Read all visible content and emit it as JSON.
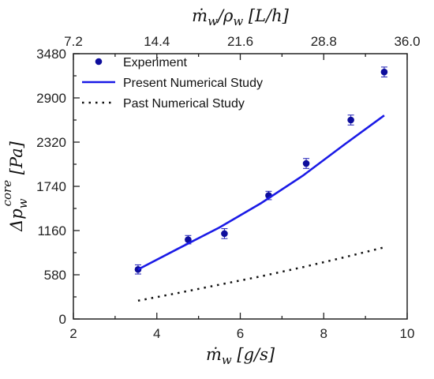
{
  "chart_data": {
    "type": "line",
    "xlabel": "ṁ_w [g/s]",
    "ylabel": "Δp_w^core [Pa]",
    "x2label": "ṁ_w/ρ_w [L/h]",
    "xlim": [
      2,
      10
    ],
    "ylim": [
      0,
      3480
    ],
    "x2lim": [
      7.2,
      36.0
    ],
    "x_ticks": [
      2,
      4,
      6,
      8,
      10
    ],
    "y_ticks": [
      0,
      580,
      1160,
      1740,
      2320,
      2900,
      3480
    ],
    "x2_ticks": [
      "7.2",
      "14.4",
      "21.6",
      "28.8",
      "36.0"
    ],
    "grid": false,
    "legend_position": "top-left",
    "series": [
      {
        "name": "Experiment",
        "kind": "scatter-errorbar",
        "color": "#1a1ab4",
        "x": [
          3.55,
          4.75,
          5.62,
          6.68,
          7.58,
          8.65,
          9.45
        ],
        "y": [
          650,
          1040,
          1120,
          1620,
          2040,
          2610,
          3240
        ],
        "error": [
          60,
          55,
          65,
          55,
          65,
          65,
          65
        ]
      },
      {
        "name": "Present Numerical Study",
        "kind": "line",
        "style": "solid",
        "color": "#1a1ae6",
        "x": [
          3.55,
          4.5,
          5.5,
          6.5,
          7.5,
          8.5,
          9.45
        ],
        "y": [
          650,
          920,
          1200,
          1520,
          1880,
          2290,
          2670
        ]
      },
      {
        "name": "Past Numerical Study",
        "kind": "line",
        "style": "dotted",
        "color": "#111111",
        "x": [
          3.55,
          4.5,
          5.5,
          6.5,
          7.5,
          8.5,
          9.45
        ],
        "y": [
          240,
          340,
          450,
          560,
          680,
          810,
          940
        ]
      }
    ]
  }
}
